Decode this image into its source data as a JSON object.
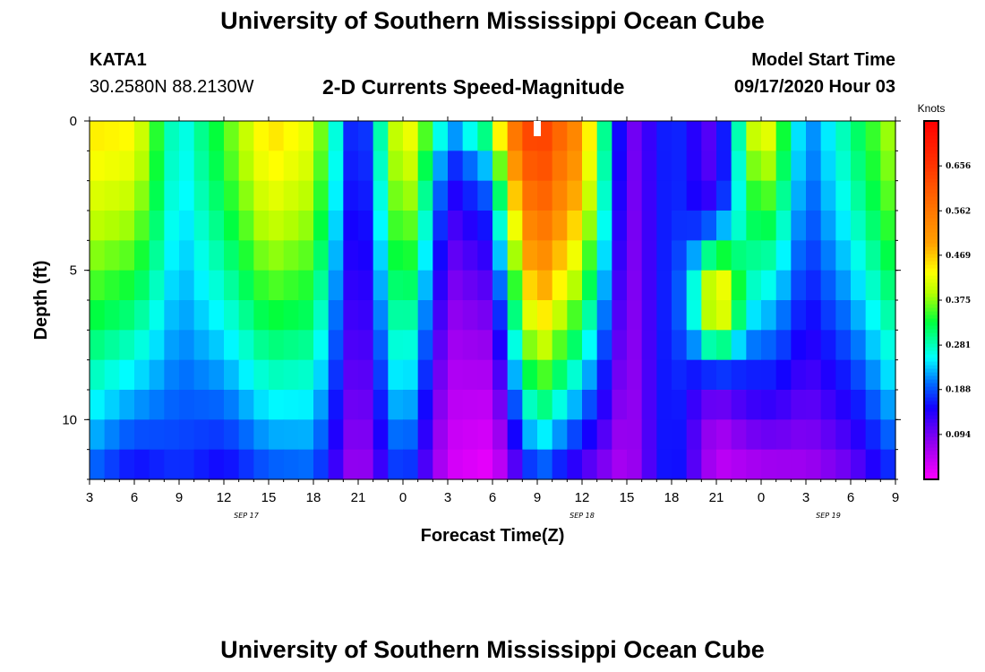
{
  "header": {
    "title": "University of Southern Mississippi Ocean Cube",
    "station_id": "KATA1",
    "station_coords": "30.2580N 88.2130W",
    "subtitle": "2-D Currents Speed-Magnitude",
    "model_start_label": "Model Start Time",
    "model_start_value": "09/17/2020 Hour 03"
  },
  "footer": {
    "title": "University of Southern Mississippi Ocean Cube"
  },
  "chart_data": {
    "type": "heatmap",
    "title": "2-D Currents Speed-Magnitude",
    "xlabel": "Forecast Time(Z)",
    "ylabel": "Depth (ft)",
    "x_range_hours": [
      3,
      57
    ],
    "y_range_ft": [
      0,
      12
    ],
    "x_ticks": [
      "3",
      "6",
      "9",
      "12",
      "15",
      "18",
      "21",
      "0",
      "3",
      "6",
      "9",
      "12",
      "15",
      "18",
      "21",
      "0",
      "3",
      "6",
      "9"
    ],
    "y_ticks": [
      "0",
      "5",
      "10"
    ],
    "day_labels": [
      {
        "text": "SEP 17",
        "hour": 13.5
      },
      {
        "text": "SEP 18",
        "hour": 36.0
      },
      {
        "text": "SEP 19",
        "hour": 52.5
      }
    ],
    "now_marker_hour": 33,
    "colorbar": {
      "unit": "Knots",
      "min": 0.0,
      "max": 0.75,
      "ticks": [
        "0.656",
        "0.562",
        "0.469",
        "0.375",
        "0.281",
        "0.188",
        "0.094"
      ],
      "tick_values": [
        0.656,
        0.562,
        0.469,
        0.375,
        0.281,
        0.188,
        0.094
      ]
    },
    "field_model": {
      "hours": [
        3,
        6,
        9,
        12,
        15,
        18,
        21,
        24,
        27,
        30,
        33,
        36,
        39,
        42,
        45,
        48,
        51,
        54,
        57
      ],
      "surface_speed": [
        0.45,
        0.44,
        0.25,
        0.35,
        0.46,
        0.42,
        0.12,
        0.46,
        0.3,
        0.52,
        0.66,
        0.52,
        0.08,
        0.18,
        0.1,
        0.48,
        0.2,
        0.3,
        0.4
      ],
      "bottom_speed": [
        0.19,
        0.14,
        0.17,
        0.14,
        0.18,
        0.19,
        0.05,
        0.19,
        0.03,
        0.01,
        0.18,
        0.1,
        0.05,
        0.18,
        0.04,
        0.05,
        0.06,
        0.09,
        0.17
      ],
      "shape_exponent": [
        1.3,
        1.3,
        1.4,
        1.4,
        1.3,
        1.3,
        1.3,
        1.2,
        0.3,
        0.3,
        1.5,
        1.3,
        1.5,
        1.0,
        1.5,
        0.9,
        1.5,
        1.4,
        1.4
      ],
      "mid_depth_bump": {
        "hour": 45,
        "depth_ft": 6.0,
        "amplitude": 0.35,
        "spread_ft": 2.2
      },
      "n_time_cells": 54,
      "n_depth_cells": 12
    }
  }
}
